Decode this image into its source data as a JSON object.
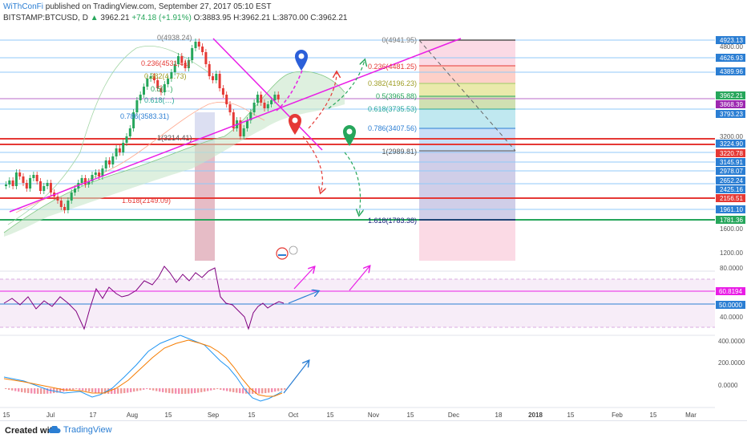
{
  "header": {
    "author": "WiThConFi",
    "published": "published on TradingView.com, September 27, 2017 05:10 EST",
    "symbol": "BITSTAMP:BTCUSD, D",
    "price": "3962.21",
    "change": "+74.18 (+1.91%)",
    "ohlc": "O:3883.95 H:3962.21 L:3870.00 C:3962.21"
  },
  "colors": {
    "up": "#26a65b",
    "down": "#e53935",
    "fan": "#ff00ff",
    "rsi": "#800080",
    "macd": "#2196f3",
    "signal": "#f57c00"
  },
  "fib_left": [
    "0(4938.24)",
    "0.236(4531.41)",
    "0.382(4…73)",
    "0.5(…)",
    "0.618(…)",
    "0.786(3583.31)",
    "1(3214.41)",
    "1.618(2149.09)"
  ],
  "fib_right": [
    "0(4941.95)",
    "0.236(4481.25)",
    "0.382(4196.23)",
    "0.5(3965.88)",
    "0.618(3735.53)",
    "0.786(3407.56)",
    "1(2989.81)",
    "1.618(1783.38)"
  ],
  "price_scale": {
    "badges": [
      {
        "text": "4923.13",
        "color": "#2b7ed3"
      },
      {
        "text": "4626.93",
        "color": "#2b7ed3"
      },
      {
        "text": "4389.96",
        "color": "#2b7ed3"
      },
      {
        "text": "3962.21",
        "color": "#26a65b"
      },
      {
        "text": "3868.39",
        "color": "#9c27b0"
      },
      {
        "text": "3793.23",
        "color": "#2b7ed3"
      },
      {
        "text": "3224.90",
        "color": "#2b7ed3"
      },
      {
        "text": "3220.78",
        "color": "#e53935"
      },
      {
        "text": "3145.91",
        "color": "#2b7ed3"
      },
      {
        "text": "2978.07",
        "color": "#2b7ed3"
      },
      {
        "text": "2652.24",
        "color": "#2b7ed3"
      },
      {
        "text": "2425.16",
        "color": "#2b7ed3"
      },
      {
        "text": "2156.51",
        "color": "#e53935"
      },
      {
        "text": "1961.10",
        "color": "#2b7ed3"
      },
      {
        "text": "1781.36",
        "color": "#26a65b"
      }
    ],
    "plain": [
      "4800.00",
      "3200.00",
      "1600.00",
      "1200.00"
    ]
  },
  "rsi_scale": {
    "plain": [
      "80.0000",
      "40.0000"
    ],
    "badges": [
      {
        "text": "60.8194",
        "color": "#e91ee6"
      },
      {
        "text": "50.0000",
        "color": "#2b7ed3"
      }
    ]
  },
  "macd_scale": {
    "plain": [
      "400.0000",
      "200.0000",
      "0.0000"
    ]
  },
  "x_axis": [
    "15",
    "Jul",
    "17",
    "Aug",
    "15",
    "Sep",
    "15",
    "Oct",
    "15",
    "Nov",
    "15",
    "Dec",
    "18",
    "2018",
    "15",
    "Feb",
    "15",
    "Mar"
  ],
  "footer": {
    "created": "Created with",
    "brand": "TradingView"
  }
}
